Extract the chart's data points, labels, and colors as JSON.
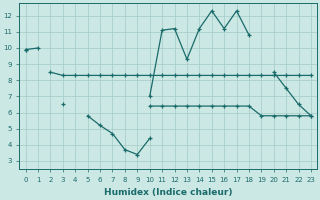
{
  "xlabel": "Humidex (Indice chaleur)",
  "x": [
    0,
    1,
    2,
    3,
    4,
    5,
    6,
    7,
    8,
    9,
    10,
    11,
    12,
    13,
    14,
    15,
    16,
    17,
    18,
    19,
    20,
    21,
    22,
    23
  ],
  "y1": [
    9.9,
    10.0,
    null,
    null,
    null,
    null,
    null,
    null,
    null,
    null,
    7.0,
    11.1,
    11.2,
    9.3,
    11.2,
    12.3,
    11.2,
    12.3,
    10.8,
    null,
    8.5,
    7.5,
    6.5,
    5.8
  ],
  "y2": [
    9.9,
    null,
    8.5,
    8.3,
    8.3,
    8.3,
    8.3,
    8.3,
    8.3,
    8.3,
    8.3,
    8.3,
    8.3,
    8.3,
    8.3,
    8.3,
    8.3,
    8.3,
    8.3,
    8.3,
    8.3,
    8.3,
    8.3,
    8.3
  ],
  "y3": [
    null,
    null,
    null,
    6.5,
    null,
    5.8,
    5.2,
    4.7,
    3.7,
    3.4,
    4.4,
    null,
    null,
    null,
    null,
    null,
    null,
    null,
    null,
    null,
    null,
    null,
    null,
    null
  ],
  "y4": [
    null,
    null,
    null,
    null,
    null,
    null,
    null,
    null,
    null,
    null,
    6.4,
    6.4,
    6.4,
    6.4,
    6.4,
    6.4,
    6.4,
    6.4,
    6.4,
    5.8,
    5.8,
    5.8,
    5.8,
    5.8
  ],
  "bg_color": "#cce8e4",
  "grid_color": "#aacfcb",
  "line_color": "#1a6b6b",
  "ylim": [
    2.5,
    12.8
  ],
  "xlim": [
    -0.5,
    23.5
  ],
  "yticks": [
    3,
    4,
    5,
    6,
    7,
    8,
    9,
    10,
    11,
    12
  ],
  "xticks": [
    0,
    1,
    2,
    3,
    4,
    5,
    6,
    7,
    8,
    9,
    10,
    11,
    12,
    13,
    14,
    15,
    16,
    17,
    18,
    19,
    20,
    21,
    22,
    23
  ]
}
